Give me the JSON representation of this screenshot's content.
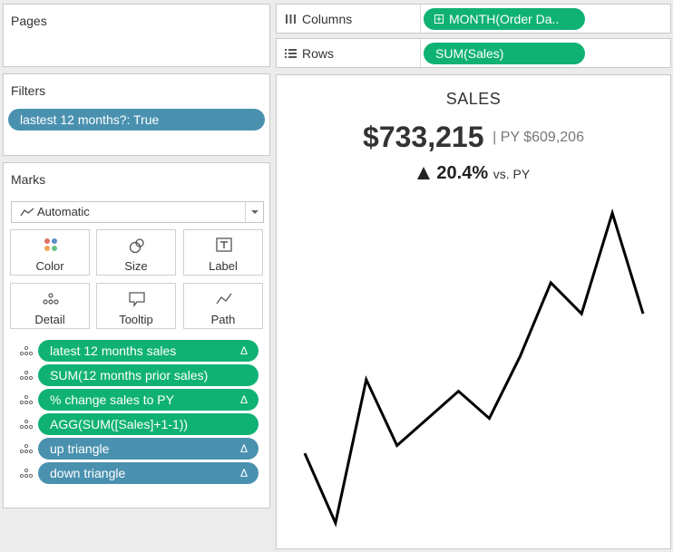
{
  "pages": {
    "title": "Pages"
  },
  "filters": {
    "title": "Filters",
    "items": [
      "lastest 12 months?: True"
    ]
  },
  "marks": {
    "title": "Marks",
    "mark_type": "Automatic",
    "buttons": [
      "Color",
      "Size",
      "Label",
      "Detail",
      "Tooltip",
      "Path"
    ],
    "fields": [
      {
        "label": "latest 12 months sales",
        "color": "green",
        "delta": "Δ"
      },
      {
        "label": "SUM(12 months prior sales)",
        "color": "green",
        "delta": ""
      },
      {
        "label": "% change sales to PY",
        "color": "green",
        "delta": "Δ"
      },
      {
        "label": "AGG(SUM([Sales]+1-1))",
        "color": "green",
        "delta": ""
      },
      {
        "label": "up triangle",
        "color": "blue",
        "delta": "Δ"
      },
      {
        "label": "down triangle",
        "color": "blue",
        "delta": "Δ"
      }
    ]
  },
  "shelves": {
    "columns_label": "Columns",
    "columns_pill": "MONTH(Order Da..",
    "rows_label": "Rows",
    "rows_pill": "SUM(Sales)"
  },
  "viz": {
    "title": "SALES",
    "kpi_value": "$733,215",
    "kpi_py": "| PY $609,206",
    "change_value": "20.4%",
    "change_suffix": "vs. PY"
  },
  "colors": {
    "green_pill": "#10b274",
    "blue_pill": "#4a91b0",
    "line": "#000000"
  },
  "chart_data": {
    "type": "line",
    "title": "SALES",
    "x": [
      1,
      2,
      3,
      4,
      5,
      6,
      7,
      8,
      9,
      10,
      11,
      12
    ],
    "series": [
      {
        "values": [
          38,
          20,
          57,
          40,
          47,
          54,
          47,
          63,
          82,
          74,
          100,
          74
        ]
      }
    ],
    "ylim": [
      20,
      100
    ],
    "grid": false,
    "legend": "none"
  }
}
